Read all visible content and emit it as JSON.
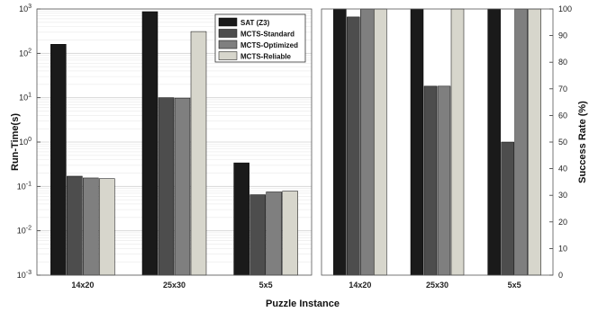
{
  "chart_data": [
    {
      "type": "bar",
      "scale": "log",
      "categories": [
        "14x20",
        "25x30",
        "5x5"
      ],
      "series": [
        {
          "name": "SAT (Z3)",
          "color": "#1a1a1a",
          "values": [
            160,
            870,
            0.34
          ]
        },
        {
          "name": "MCTS-Standard",
          "color": "#4d4d4d",
          "values": [
            0.17,
            10,
            0.065
          ]
        },
        {
          "name": "MCTS-Optimized",
          "color": "#7f7f7f",
          "values": [
            0.155,
            9.8,
            0.075
          ]
        },
        {
          "name": "MCTS-Reliable",
          "color": "#d7d6cc",
          "values": [
            0.15,
            310,
            0.078
          ]
        }
      ],
      "yticks": [
        {
          "base": "10",
          "exp": "-3",
          "value": 0.001
        },
        {
          "base": "10",
          "exp": "-2",
          "value": 0.01
        },
        {
          "base": "10",
          "exp": "-1",
          "value": 0.1
        },
        {
          "base": "10",
          "exp": "0",
          "value": 1
        },
        {
          "base": "10",
          "exp": "1",
          "value": 10
        },
        {
          "base": "10",
          "exp": "2",
          "value": 100
        },
        {
          "base": "10",
          "exp": "3",
          "value": 1000
        }
      ],
      "ylabel": "Run-Time(s)",
      "ylim": [
        0.001,
        1000
      ],
      "grid": true,
      "legend_position": "top-right"
    },
    {
      "type": "bar",
      "categories": [
        "14x20",
        "25x30",
        "5x5"
      ],
      "series": [
        {
          "name": "SAT (Z3)",
          "color": "#1a1a1a",
          "values": [
            100,
            100,
            100
          ]
        },
        {
          "name": "MCTS-Standard",
          "color": "#4d4d4d",
          "values": [
            97,
            71,
            50
          ]
        },
        {
          "name": "MCTS-Optimized",
          "color": "#7f7f7f",
          "values": [
            100,
            71,
            100
          ]
        },
        {
          "name": "MCTS-Reliable",
          "color": "#d7d6cc",
          "values": [
            100,
            100,
            100
          ]
        }
      ],
      "yticks": [
        "0",
        "10",
        "20",
        "30",
        "40",
        "50",
        "60",
        "70",
        "80",
        "90",
        "100"
      ],
      "ylabel": "Success Rate (%)",
      "ylim": [
        0,
        100
      ],
      "axis_side": "right",
      "grid": false
    }
  ],
  "xlabel": "Puzzle Instance"
}
